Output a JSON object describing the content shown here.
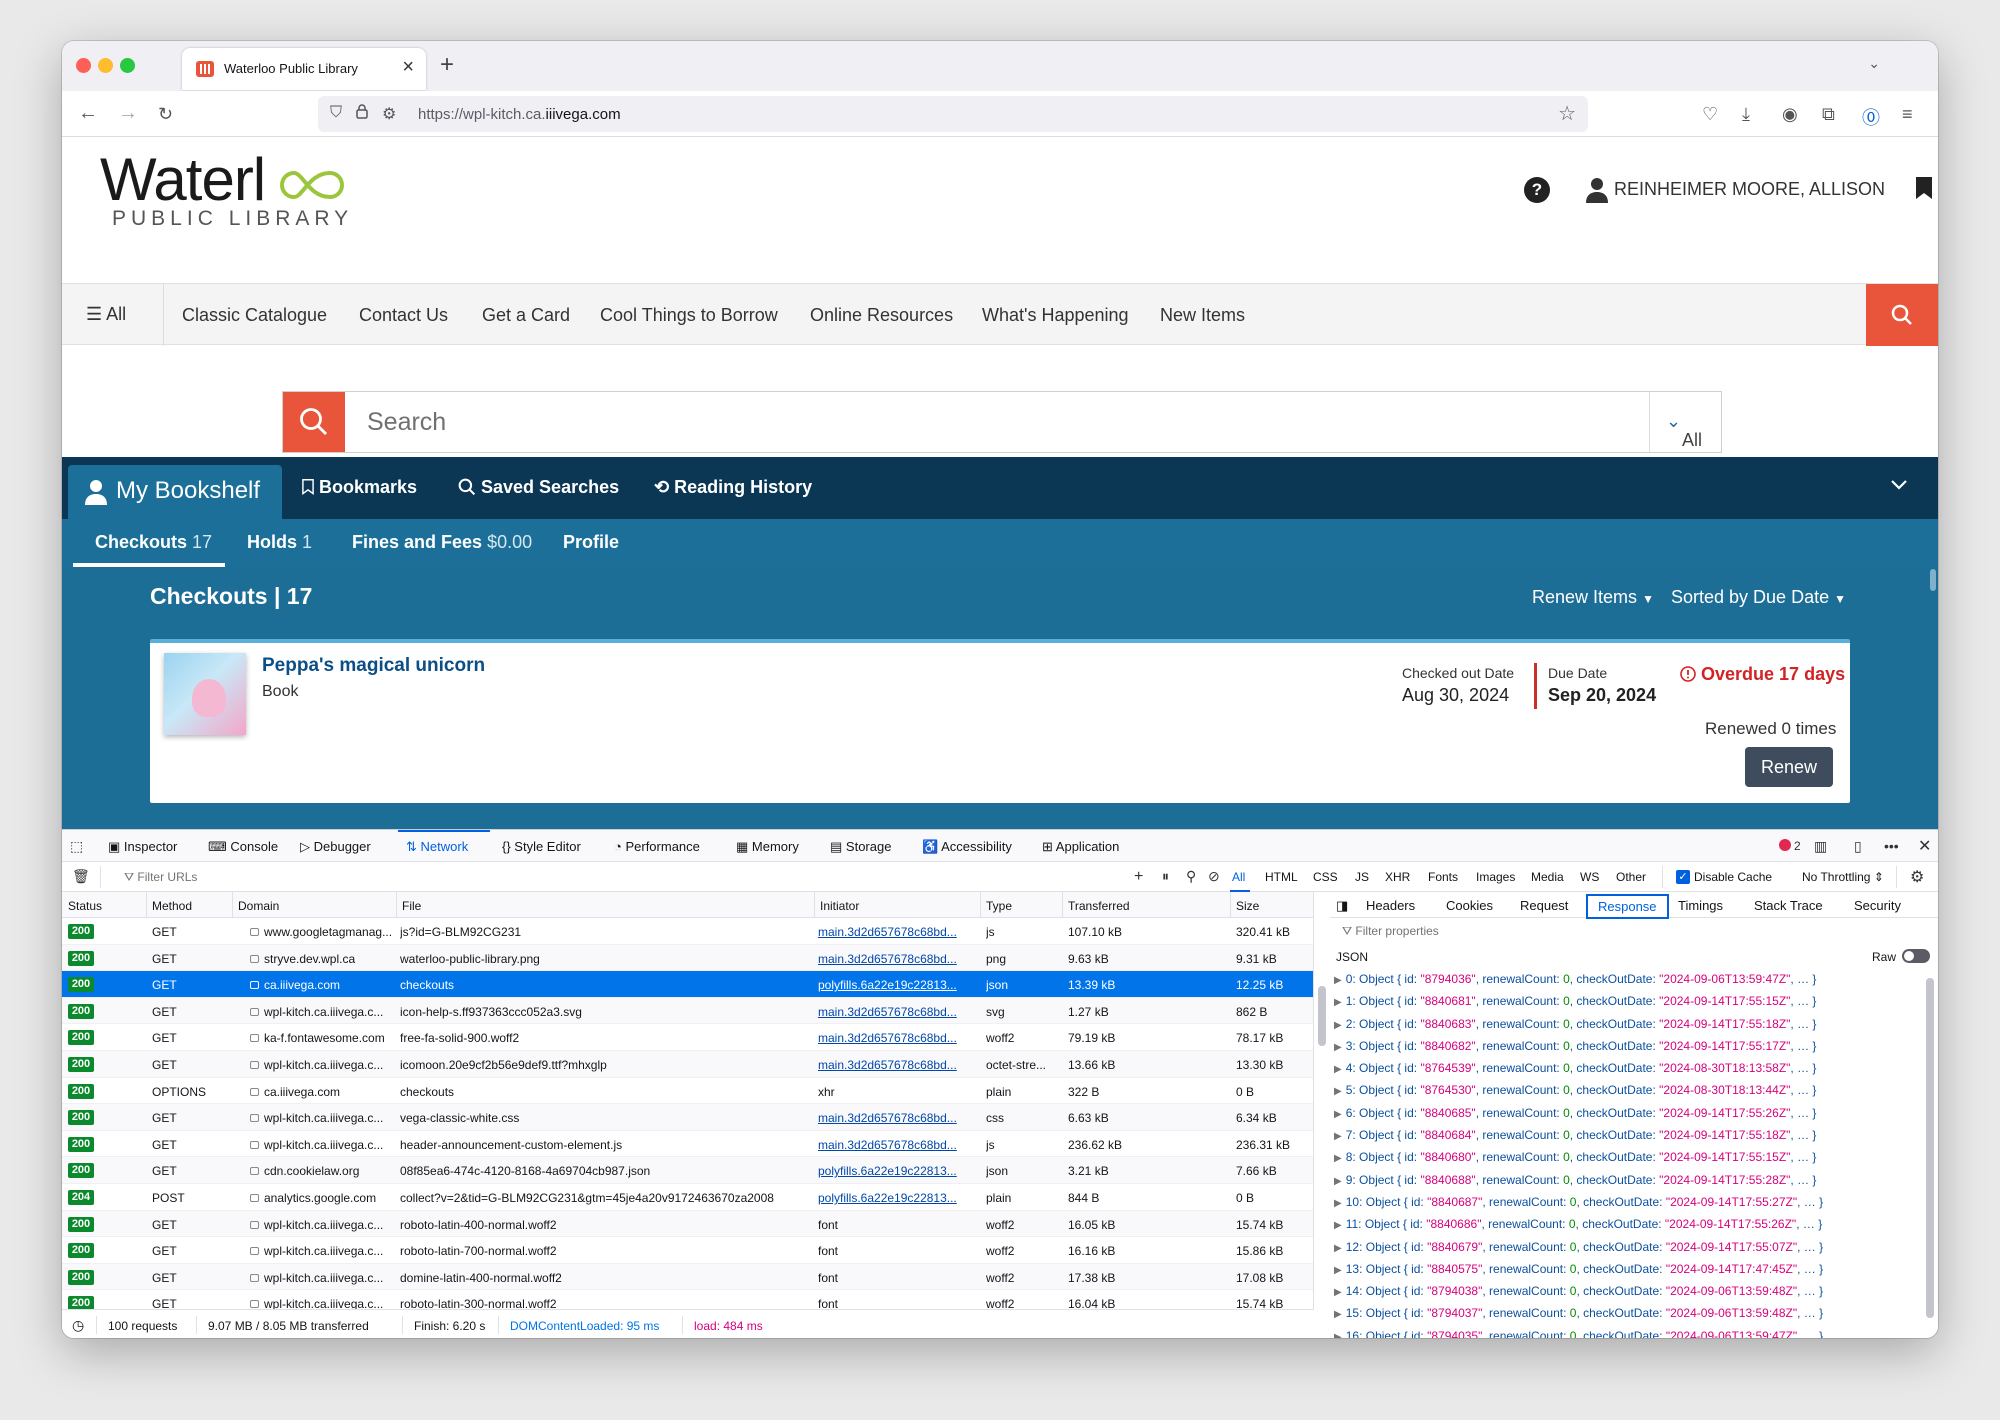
{
  "browser": {
    "tab_title": "Waterloo Public Library",
    "url_prefix": "https://wpl-kitch.ca.",
    "url_domain": "iiivega.com"
  },
  "header": {
    "logo_main": "Waterl",
    "logo_sub": "PUBLIC LIBRARY",
    "user_name": "REINHEIMER MOORE, ALLISON"
  },
  "main_nav": {
    "all_label": "All",
    "items": [
      "Classic Catalogue",
      "Contact Us",
      "Get a Card",
      "Cool Things to Borrow",
      "Online Resources",
      "What's Happening",
      "New Items"
    ]
  },
  "search": {
    "placeholder": "Search",
    "scope": "All"
  },
  "bookshelf": {
    "active": "My Bookshelf",
    "items": [
      "Bookmarks",
      "Saved Searches",
      "Reading History"
    ]
  },
  "subtabs": [
    {
      "label": "Checkouts",
      "count": "17"
    },
    {
      "label": "Holds",
      "count": "1"
    },
    {
      "label": "Fines and Fees",
      "count": "$0.00"
    },
    {
      "label": "Profile",
      "count": ""
    }
  ],
  "checkouts": {
    "heading": "Checkouts | 17",
    "renew_items": "Renew Items",
    "sorted": "Sorted by Due Date",
    "item": {
      "title": "Peppa's magical unicorn",
      "type": "Book",
      "checked_out_label": "Checked out Date",
      "checked_out_value": "Aug 30, 2024",
      "due_label": "Due Date",
      "due_value": "Sep 20, 2024",
      "overdue": "Overdue 17 days",
      "renewed": "Renewed 0 times",
      "renew_button": "Renew"
    }
  },
  "devtools": {
    "tabs": [
      "Inspector",
      "Console",
      "Debugger",
      "Network",
      "Style Editor",
      "Performance",
      "Memory",
      "Storage",
      "Accessibility",
      "Application"
    ],
    "active_tab": "Network",
    "error_count": "2",
    "filter_placeholder": "Filter URLs",
    "type_filters": [
      "All",
      "HTML",
      "CSS",
      "JS",
      "XHR",
      "Fonts",
      "Images",
      "Media",
      "WS",
      "Other"
    ],
    "disable_cache": "Disable Cache",
    "throttling": "No Throttling ⇕",
    "columns": [
      "Status",
      "Method",
      "Domain",
      "File",
      "Initiator",
      "Type",
      "Transferred",
      "Size"
    ],
    "requests": [
      {
        "status": "200",
        "method": "GET",
        "domain": "www.googletagmanag...",
        "file": "js?id=G-BLM92CG231",
        "initiator": "main.3d2d657678c68bd...",
        "type": "js",
        "transferred": "107.10 kB",
        "size": "320.41 kB"
      },
      {
        "status": "200",
        "method": "GET",
        "domain": "stryve.dev.wpl.ca",
        "file": "waterloo-public-library.png",
        "initiator": "main.3d2d657678c68bd...",
        "type": "png",
        "transferred": "9.63 kB",
        "size": "9.31 kB"
      },
      {
        "status": "200",
        "method": "GET",
        "domain": "ca.iiivega.com",
        "file": "checkouts",
        "initiator": "polyfills.6a22e19c22813...",
        "type": "json",
        "transferred": "13.39 kB",
        "size": "12.25 kB"
      },
      {
        "status": "200",
        "method": "GET",
        "domain": "wpl-kitch.ca.iiivega.c...",
        "file": "icon-help-s.ff937363ccc052a3.svg",
        "initiator": "main.3d2d657678c68bd...",
        "type": "svg",
        "transferred": "1.27 kB",
        "size": "862 B"
      },
      {
        "status": "200",
        "method": "GET",
        "domain": "ka-f.fontawesome.com",
        "file": "free-fa-solid-900.woff2",
        "initiator": "main.3d2d657678c68bd...",
        "type": "woff2",
        "transferred": "79.19 kB",
        "size": "78.17 kB"
      },
      {
        "status": "200",
        "method": "GET",
        "domain": "wpl-kitch.ca.iiivega.c...",
        "file": "icomoon.20e9cf2b56e9def9.ttf?mhxglp",
        "initiator": "main.3d2d657678c68bd...",
        "type": "octet-stre...",
        "transferred": "13.66 kB",
        "size": "13.30 kB"
      },
      {
        "status": "200",
        "method": "OPTIONS",
        "domain": "ca.iiivega.com",
        "file": "checkouts",
        "initiator": "xhr",
        "type": "plain",
        "transferred": "322 B",
        "size": "0 B"
      },
      {
        "status": "200",
        "method": "GET",
        "domain": "wpl-kitch.ca.iiivega.c...",
        "file": "vega-classic-white.css",
        "initiator": "main.3d2d657678c68bd...",
        "type": "css",
        "transferred": "6.63 kB",
        "size": "6.34 kB"
      },
      {
        "status": "200",
        "method": "GET",
        "domain": "wpl-kitch.ca.iiivega.c...",
        "file": "header-announcement-custom-element.js",
        "initiator": "main.3d2d657678c68bd...",
        "type": "js",
        "transferred": "236.62 kB",
        "size": "236.31 kB"
      },
      {
        "status": "200",
        "method": "GET",
        "domain": "cdn.cookielaw.org",
        "file": "08f85ea6-474c-4120-8168-4a69704cb987.json",
        "initiator": "polyfills.6a22e19c22813...",
        "type": "json",
        "transferred": "3.21 kB",
        "size": "7.66 kB"
      },
      {
        "status": "204",
        "method": "POST",
        "domain": "analytics.google.com",
        "file": "collect?v=2&tid=G-BLM92CG231&gtm=45je4a20v9172463670za2008",
        "initiator": "polyfills.6a22e19c22813...",
        "type": "plain",
        "transferred": "844 B",
        "size": "0 B"
      },
      {
        "status": "200",
        "method": "GET",
        "domain": "wpl-kitch.ca.iiivega.c...",
        "file": "roboto-latin-400-normal.woff2",
        "initiator": "font",
        "type": "woff2",
        "transferred": "16.05 kB",
        "size": "15.74 kB"
      },
      {
        "status": "200",
        "method": "GET",
        "domain": "wpl-kitch.ca.iiivega.c...",
        "file": "roboto-latin-700-normal.woff2",
        "initiator": "font",
        "type": "woff2",
        "transferred": "16.16 kB",
        "size": "15.86 kB"
      },
      {
        "status": "200",
        "method": "GET",
        "domain": "wpl-kitch.ca.iiivega.c...",
        "file": "domine-latin-400-normal.woff2",
        "initiator": "font",
        "type": "woff2",
        "transferred": "17.38 kB",
        "size": "17.08 kB"
      },
      {
        "status": "200",
        "method": "GET",
        "domain": "wpl-kitch.ca.iiivega.c...",
        "file": "roboto-latin-300-normal.woff2",
        "initiator": "font",
        "type": "woff2",
        "transferred": "16.04 kB",
        "size": "15.74 kB"
      }
    ],
    "selected_row": 2,
    "status_bar": {
      "requests": "100 requests",
      "transferred": "9.07 MB / 8.05 MB transferred",
      "finish": "Finish: 6.20 s",
      "dom": "DOMContentLoaded: 95 ms",
      "load": "load: 484 ms"
    },
    "response_tabs": [
      "Headers",
      "Cookies",
      "Request",
      "Response",
      "Timings",
      "Stack Trace",
      "Security"
    ],
    "response_active": "Response",
    "filter_properties": "Filter properties",
    "json_label": "JSON",
    "raw_label": "Raw",
    "json_rows": [
      {
        "idx": "0",
        "id": "\"8794036\"",
        "date": "\"2024-09-06T13:59:47Z\""
      },
      {
        "idx": "1",
        "id": "\"8840681\"",
        "date": "\"2024-09-14T17:55:15Z\""
      },
      {
        "idx": "2",
        "id": "\"8840683\"",
        "date": "\"2024-09-14T17:55:18Z\""
      },
      {
        "idx": "3",
        "id": "\"8840682\"",
        "date": "\"2024-09-14T17:55:17Z\""
      },
      {
        "idx": "4",
        "id": "\"8764539\"",
        "date": "\"2024-08-30T18:13:58Z\""
      },
      {
        "idx": "5",
        "id": "\"8764530\"",
        "date": "\"2024-08-30T18:13:44Z\""
      },
      {
        "idx": "6",
        "id": "\"8840685\"",
        "date": "\"2024-09-14T17:55:26Z\""
      },
      {
        "idx": "7",
        "id": "\"8840684\"",
        "date": "\"2024-09-14T17:55:18Z\""
      },
      {
        "idx": "8",
        "id": "\"8840680\"",
        "date": "\"2024-09-14T17:55:15Z\""
      },
      {
        "idx": "9",
        "id": "\"8840688\"",
        "date": "\"2024-09-14T17:55:28Z\""
      },
      {
        "idx": "10",
        "id": "\"8840687\"",
        "date": "\"2024-09-14T17:55:27Z\""
      },
      {
        "idx": "11",
        "id": "\"8840686\"",
        "date": "\"2024-09-14T17:55:26Z\""
      },
      {
        "idx": "12",
        "id": "\"8840679\"",
        "date": "\"2024-09-14T17:55:07Z\""
      },
      {
        "idx": "13",
        "id": "\"8840575\"",
        "date": "\"2024-09-14T17:47:45Z\""
      },
      {
        "idx": "14",
        "id": "\"8794038\"",
        "date": "\"2024-09-06T13:59:48Z\""
      },
      {
        "idx": "15",
        "id": "\"8794037\"",
        "date": "\"2024-09-06T13:59:48Z\""
      },
      {
        "idx": "16",
        "id": "\"8794035\"",
        "date": "\"2024-09-06T13:59:47Z\""
      }
    ]
  }
}
